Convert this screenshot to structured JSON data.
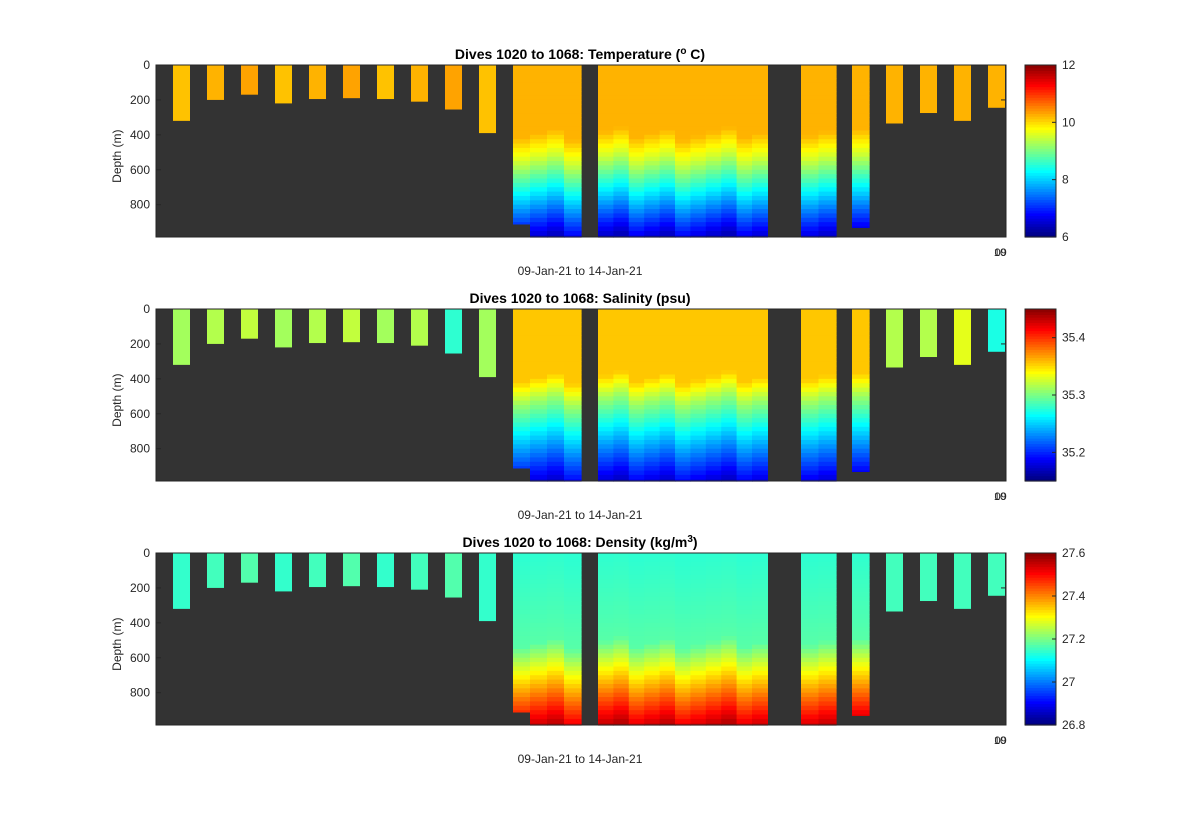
{
  "chart_data": [
    {
      "type": "heatmap",
      "variable": "temperature",
      "title_main": "Dives 1020 to 1068: Temperature (",
      "title_sup": "o",
      "title_tail": " C)",
      "ylabel": "Depth (m)",
      "xlabel": "09-Jan-21 to 14-Jan-21",
      "y_ticks": [
        "0",
        "200",
        "400",
        "600",
        "800"
      ],
      "ylim": [
        0,
        985
      ],
      "y_reversed": true,
      "x_corner_labels": [
        "10",
        "09"
      ],
      "colorbar": {
        "min": 6,
        "max": 12,
        "ticks": [
          "12",
          "10",
          "8",
          "6"
        ],
        "colormap": "jet"
      }
    },
    {
      "type": "heatmap",
      "variable": "salinity",
      "title_main": "Dives 1020 to 1068: Salinity (psu)",
      "title_sup": "",
      "title_tail": "",
      "ylabel": "Depth (m)",
      "xlabel": "09-Jan-21 to 14-Jan-21",
      "y_ticks": [
        "0",
        "200",
        "400",
        "600",
        "800"
      ],
      "ylim": [
        0,
        985
      ],
      "y_reversed": true,
      "x_corner_labels": [
        "10",
        "09"
      ],
      "colorbar": {
        "min": 35.15,
        "max": 35.45,
        "ticks": [
          "35.4",
          "35.3",
          "35.2"
        ],
        "colormap": "jet"
      }
    },
    {
      "type": "heatmap",
      "variable": "density",
      "title_main": "Dives 1020 to 1068: Density (kg/m",
      "title_sup": "3",
      "title_tail": ")",
      "ylabel": "Depth (m)",
      "xlabel": "09-Jan-21 to 14-Jan-21",
      "y_ticks": [
        "0",
        "200",
        "400",
        "600",
        "800"
      ],
      "ylim": [
        0,
        985
      ],
      "y_reversed": true,
      "x_corner_labels": [
        "10",
        "09"
      ],
      "colorbar": {
        "min": 26.8,
        "max": 27.6,
        "ticks": [
          "27.6",
          "27.4",
          "27.2",
          "27",
          "26.8"
        ],
        "colormap": "jet"
      }
    }
  ],
  "profile_groups": {
    "shallow_dive_max_depth_m": [
      320,
      200,
      170,
      220,
      195,
      190,
      195,
      210,
      255,
      390
    ],
    "deep_block_1_max_depth_m": [
      910,
      985,
      985,
      985
    ],
    "deep_block_2_max_depth_m": [
      985,
      985,
      985,
      985,
      985,
      985,
      985,
      985,
      985,
      985,
      985
    ],
    "deep_block_3_max_depth_m": [
      985,
      985,
      930
    ],
    "late_dive_max_depth_m": [
      335,
      275,
      320,
      245
    ]
  },
  "colors": {
    "background": "#333333",
    "frame": "#262626"
  }
}
